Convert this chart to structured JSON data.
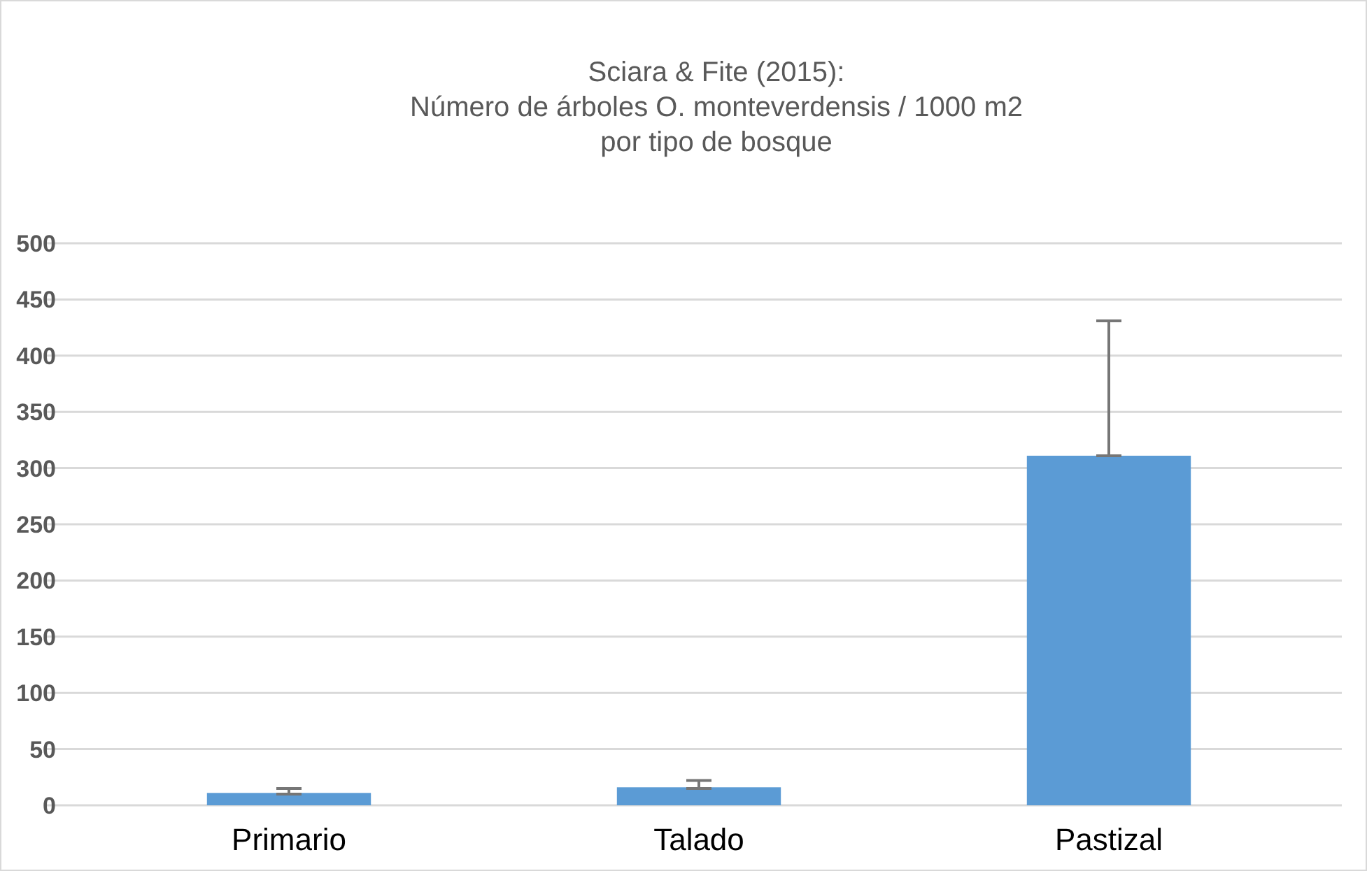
{
  "chart_data": {
    "type": "bar",
    "title": "Sciara & Fite (2015):\nNúmero de árboles O. monteverdensis / 1000 m2\npor tipo de bosque",
    "categories": [
      "Primario",
      "Talado",
      "Pastizal"
    ],
    "values": [
      11,
      16,
      311
    ],
    "errors": [
      [
        10,
        15
      ],
      [
        15,
        22
      ],
      [
        311,
        431
      ]
    ],
    "color": "#5b9bd5",
    "ylim": [
      0,
      500
    ],
    "yticks": [
      0,
      50,
      100,
      150,
      200,
      250,
      300,
      350,
      400,
      450,
      500
    ],
    "grid": "y"
  }
}
